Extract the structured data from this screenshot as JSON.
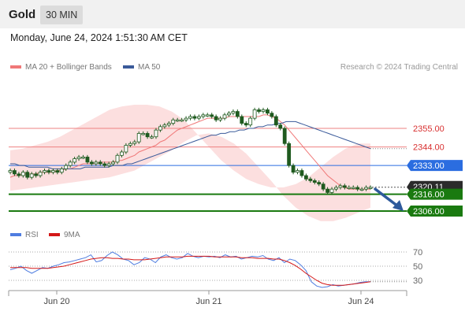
{
  "header": {
    "asset": "Gold",
    "timeframe": "30 MIN",
    "datetime": "Monday, June 24, 2024 1:51:30 AM CET"
  },
  "legend": {
    "bollinger": "MA 20 + Bollinger Bands",
    "ma50": "MA 50",
    "copyright": "Research © 2024 Trading Central",
    "rsi": "RSI",
    "ma9": "9MA"
  },
  "colors": {
    "bollinger": "#f07878",
    "ma50": "#3a5a9a",
    "support": "#1a7a10",
    "pivot": "#2b6de0",
    "current": "#333333",
    "arrow": "#2e5a9c",
    "rsi": "#4f7de0",
    "ma9": "#d41818"
  },
  "chart_data": [
    {
      "type": "candlestick",
      "levels": [
        {
          "value": 2355.0,
          "label": "2355.00",
          "kind": "resistance"
        },
        {
          "value": 2344.0,
          "label": "2344.00",
          "kind": "resistance"
        },
        {
          "value": 2333.0,
          "label": "2333.00",
          "kind": "pivot"
        },
        {
          "value": 2320.11,
          "label": "2320.11",
          "kind": "current"
        },
        {
          "value": 2316.0,
          "label": "2316.00",
          "kind": "support"
        },
        {
          "value": 2306.0,
          "label": "2306.00",
          "kind": "support"
        }
      ],
      "x_labels": [
        "Jun 20",
        "Jun 21",
        "Jun 24"
      ],
      "closes": [
        2330,
        2328,
        2327,
        2329,
        2326,
        2328,
        2327,
        2329,
        2330,
        2329,
        2330,
        2329,
        2331,
        2333,
        2335,
        2337,
        2338,
        2338,
        2335,
        2334,
        2335,
        2334,
        2333,
        2334,
        2335,
        2339,
        2341,
        2345,
        2346,
        2347,
        2352,
        2352,
        2350,
        2350,
        2354,
        2356,
        2357,
        2358,
        2360,
        2360,
        2360,
        2361,
        2362,
        2361,
        2362,
        2363,
        2363,
        2362,
        2360,
        2361,
        2363,
        2364,
        2365,
        2362,
        2358,
        2357,
        2361,
        2366,
        2365,
        2366,
        2364,
        2362,
        2357,
        2355,
        2346,
        2333,
        2329,
        2330,
        2327,
        2325,
        2324,
        2323,
        2322,
        2319,
        2317,
        2319,
        2320,
        2321,
        2320,
        2320,
        2320,
        2319,
        2319,
        2320,
        2320
      ],
      "bollinger_mid": [
        2326,
        2327,
        2327,
        2328,
        2328,
        2328,
        2328,
        2329,
        2329,
        2329,
        2329,
        2330,
        2330,
        2331,
        2331,
        2332,
        2333,
        2334,
        2334,
        2334,
        2334,
        2335,
        2335,
        2335,
        2335,
        2336,
        2336,
        2337,
        2338,
        2339,
        2341,
        2342,
        2343,
        2344,
        2345,
        2347,
        2348,
        2350,
        2352,
        2354,
        2355,
        2356,
        2357,
        2358,
        2359,
        2360,
        2361,
        2361,
        2361,
        2361,
        2361,
        2362,
        2362,
        2362,
        2362,
        2362,
        2362,
        2362,
        2362,
        2363,
        2363,
        2362,
        2361,
        2359,
        2357,
        2354,
        2351,
        2348,
        2345,
        2342,
        2339,
        2336,
        2333,
        2330,
        2327,
        2325,
        2323,
        2321,
        2320,
        2319,
        2319,
        2319,
        2319,
        2319,
        2319
      ],
      "ma50": [
        2334,
        2334,
        2333,
        2333,
        2332,
        2332,
        2332,
        2332,
        2332,
        2331,
        2331,
        2331,
        2331,
        2331,
        2331,
        2331,
        2332,
        2332,
        2332,
        2332,
        2332,
        2332,
        2333,
        2333,
        2333,
        2334,
        2334,
        2335,
        2336,
        2337,
        2338,
        2339,
        2340,
        2341,
        2342,
        2343,
        2344,
        2345,
        2346,
        2347,
        2348,
        2349,
        2350,
        2351,
        2351,
        2352,
        2352,
        2353,
        2353,
        2354,
        2354,
        2355,
        2355,
        2356,
        2356,
        2357,
        2357,
        2358,
        2358,
        2359,
        2359,
        2359,
        2358,
        2357,
        2356,
        2355,
        2354,
        2353,
        2352,
        2351,
        2350,
        2349,
        2348,
        2347,
        2346,
        2345,
        2344,
        2343
      ],
      "band_upper": [
        2342,
        2343,
        2345,
        2347,
        2350,
        2354,
        2358,
        2362,
        2366,
        2368,
        2369,
        2369,
        2368,
        2365,
        2360,
        2352,
        2344,
        2336,
        2330,
        2325,
        2322,
        2320,
        2320,
        2322,
        2326,
        2332,
        2338,
        2343,
        2346,
        2346
      ],
      "band_lower": [
        2318,
        2319,
        2320,
        2321,
        2322,
        2323,
        2324,
        2325,
        2326,
        2328,
        2330,
        2334,
        2338,
        2342,
        2347,
        2351,
        2352,
        2350,
        2346,
        2340,
        2332,
        2324,
        2315,
        2308,
        2303,
        2300,
        2300,
        2302,
        2305,
        2308
      ]
    },
    {
      "type": "line",
      "name": "RSI",
      "levels": [
        70,
        50,
        30
      ],
      "rsi": [
        45,
        47,
        50,
        44,
        40,
        44,
        48,
        47,
        50,
        52,
        55,
        56,
        58,
        60,
        62,
        66,
        56,
        58,
        65,
        70,
        66,
        60,
        58,
        52,
        55,
        62,
        60,
        55,
        63,
        66,
        62,
        60,
        62,
        68,
        64,
        62,
        64,
        63,
        64,
        62,
        66,
        63,
        64,
        60,
        62,
        64,
        63,
        65,
        60,
        58,
        62,
        55,
        60,
        58,
        52,
        44,
        28,
        22,
        20,
        21,
        24,
        22,
        23,
        24,
        25,
        27,
        28,
        28
      ],
      "ma9": [
        48,
        48,
        48,
        48,
        47,
        47,
        47,
        47,
        48,
        49,
        50,
        52,
        54,
        56,
        58,
        60,
        61,
        62,
        62,
        61,
        61,
        60,
        60,
        59,
        59,
        59,
        60,
        61,
        62,
        63,
        63,
        63,
        63,
        64,
        64,
        64,
        64,
        64,
        63,
        63,
        63,
        63,
        63,
        62,
        62,
        62,
        61,
        61,
        61,
        60,
        60,
        58,
        55,
        51,
        46,
        40,
        35,
        30,
        26,
        24,
        23,
        23,
        23,
        24,
        25,
        26,
        27,
        28
      ]
    }
  ]
}
